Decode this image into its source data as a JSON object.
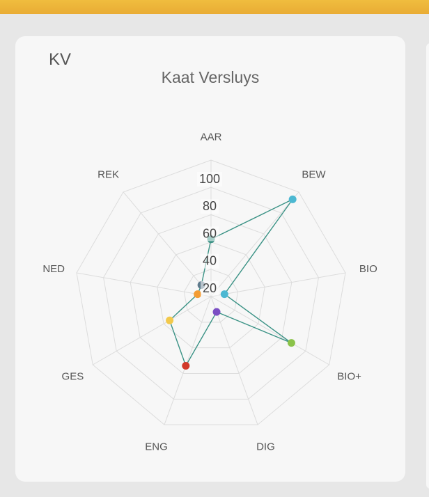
{
  "card": {
    "initials": "KV"
  },
  "chart_data": {
    "type": "radar",
    "title": "Kaat Versluys",
    "categories": [
      "AAR",
      "BEW",
      "BIO",
      "BIO+",
      "DIG",
      "ENG",
      "GES",
      "NED",
      "REK"
    ],
    "ticks": [
      "20",
      "40",
      "60",
      "80",
      "100"
    ],
    "rlim": [
      0,
      100
    ],
    "grid": true,
    "series": [
      {
        "values": [
          42,
          93,
          10,
          68,
          12,
          54,
          35,
          10,
          11
        ],
        "line_color": "#3a9285",
        "point_colors": [
          "#3a9285",
          "#4cb8d2",
          "#4cb8d2",
          "#8bc34a",
          "#7b4fc4",
          "#d23a2a",
          "#f2c94c",
          "#f39c33",
          "#5f7a8c"
        ]
      }
    ]
  }
}
